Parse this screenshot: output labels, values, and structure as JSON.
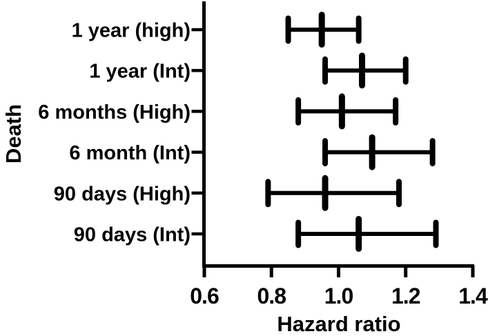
{
  "figure": {
    "background_color": "#ffffff",
    "ink_color": "#000000"
  },
  "chart_data": {
    "type": "scatter",
    "variant": "horizontal-error-bar-forest-plot",
    "title": "",
    "xlabel": "Hazard ratio",
    "ylabel": "Death",
    "xlim": [
      0.6,
      1.4
    ],
    "xtick_labels": [
      "0.6",
      "0.8",
      "1.0",
      "1.2",
      "1.4"
    ],
    "grid": false,
    "legend": null,
    "categories": [
      "1 year (high)",
      "1 year (Int)",
      "6 months (High)",
      "6 month (Int)",
      "90 days (High)",
      "90 days (Int)"
    ],
    "rows": [
      {
        "category": "1 year (high)",
        "estimate": 0.95,
        "ci_low": 0.85,
        "ci_high": 1.06
      },
      {
        "category": "1 year (Int)",
        "estimate": 1.07,
        "ci_low": 0.96,
        "ci_high": 1.2
      },
      {
        "category": "6 months (High)",
        "estimate": 1.01,
        "ci_low": 0.88,
        "ci_high": 1.17
      },
      {
        "category": "6 month (Int)",
        "estimate": 1.1,
        "ci_low": 0.96,
        "ci_high": 1.28
      },
      {
        "category": "90 days (High)",
        "estimate": 0.96,
        "ci_low": 0.79,
        "ci_high": 1.18
      },
      {
        "category": "90 days (Int)",
        "estimate": 1.06,
        "ci_low": 0.88,
        "ci_high": 1.29
      }
    ]
  }
}
